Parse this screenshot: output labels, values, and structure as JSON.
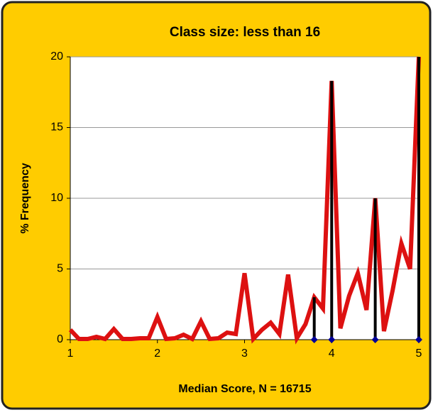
{
  "chart_data": {
    "type": "line",
    "title": "Class size: less than 16",
    "x_label": "Median Score, N = 16715",
    "y_label": "% Frequency",
    "xlim": [
      1,
      5
    ],
    "xticks": [
      1,
      2,
      3,
      4,
      5
    ],
    "ylim": [
      0,
      20
    ],
    "yticks": [
      0,
      5,
      10,
      15,
      20
    ],
    "grid": true,
    "x": [
      1.0,
      1.1,
      1.2,
      1.3,
      1.4,
      1.5,
      1.6,
      1.7,
      1.8,
      1.9,
      2.0,
      2.1,
      2.2,
      2.3,
      2.4,
      2.5,
      2.6,
      2.7,
      2.8,
      2.9,
      3.0,
      3.1,
      3.2,
      3.3,
      3.4,
      3.5,
      3.6,
      3.7,
      3.8,
      3.9,
      4.0,
      4.1,
      4.2,
      4.3,
      4.4,
      4.5,
      4.6,
      4.7,
      4.8,
      4.9,
      5.0
    ],
    "series": [
      {
        "color": "#dd1111",
        "values": [
          0.7,
          0.05,
          0.05,
          0.2,
          0.05,
          0.75,
          0.05,
          0.05,
          0.1,
          0.1,
          1.6,
          0.05,
          0.1,
          0.35,
          0.05,
          1.3,
          0.05,
          0.1,
          0.5,
          0.4,
          4.7,
          0.05,
          0.7,
          1.2,
          0.4,
          4.6,
          0.1,
          1.1,
          3.0,
          2.2,
          18.3,
          0.8,
          3.1,
          4.7,
          2.1,
          10.0,
          0.6,
          3.5,
          6.8,
          5.0,
          20
        ]
      },
      {
        "type": "stem",
        "color": "#000000",
        "marker_color": "#000099",
        "x": [
          3.8,
          4.0,
          4.5,
          5.0
        ],
        "values": [
          3.0,
          18.3,
          10.0,
          20
        ]
      }
    ]
  }
}
